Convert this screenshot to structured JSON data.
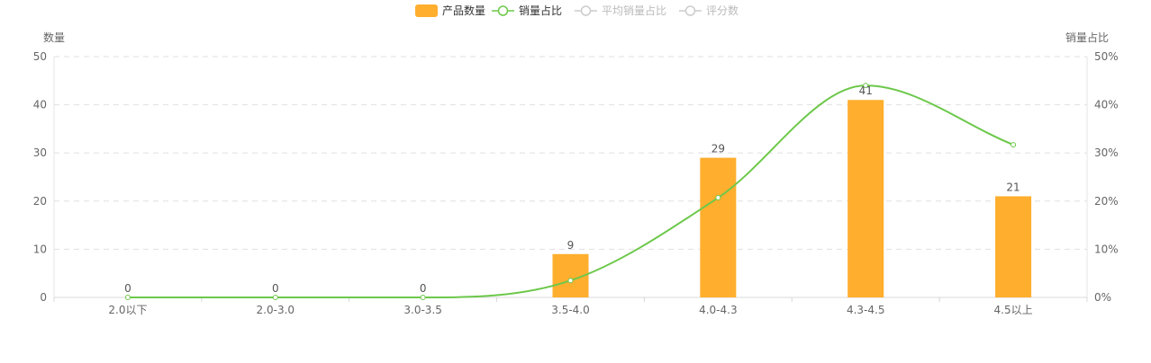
{
  "chart_data": {
    "type": "bar",
    "categories": [
      "2.0以下",
      "2.0-3.0",
      "3.0-3.5",
      "3.5-4.0",
      "4.0-4.3",
      "4.3-4.5",
      "4.5以上"
    ],
    "series": [
      {
        "name": "产品数量",
        "type": "bar",
        "axis": "left",
        "values": [
          0,
          0,
          0,
          9,
          29,
          41,
          21
        ],
        "color": "#FFAE2E",
        "labels": [
          "0",
          "0",
          "0",
          "9",
          "29",
          "41",
          "21"
        ]
      },
      {
        "name": "销量占比",
        "type": "line",
        "smooth": true,
        "axis": "right",
        "values": [
          0,
          0,
          0,
          3.5,
          20.7,
          44,
          31.7
        ],
        "color": "#6CC84A"
      }
    ],
    "legend": [
      {
        "name": "产品数量",
        "active": true,
        "color": "#FFAE2E",
        "kind": "bar"
      },
      {
        "name": "销量占比",
        "active": true,
        "color": "#6CC84A",
        "kind": "line"
      },
      {
        "name": "平均销量占比",
        "active": false,
        "color": "#CCCCCC",
        "kind": "line"
      },
      {
        "name": "评分数",
        "active": false,
        "color": "#CCCCCC",
        "kind": "line"
      }
    ],
    "legend_position": "top-center",
    "y_left": {
      "label": "数量",
      "min": 0,
      "max": 50,
      "ticks": [
        0,
        10,
        20,
        30,
        40,
        50
      ],
      "tick_labels": [
        "0",
        "10",
        "20",
        "30",
        "40",
        "50"
      ]
    },
    "y_right": {
      "label": "销量占比",
      "min": 0,
      "max": 50,
      "ticks": [
        0,
        10,
        20,
        30,
        40,
        50
      ],
      "tick_labels": [
        "0%",
        "10%",
        "20%",
        "30%",
        "40%",
        "50%"
      ]
    },
    "grid": true
  }
}
